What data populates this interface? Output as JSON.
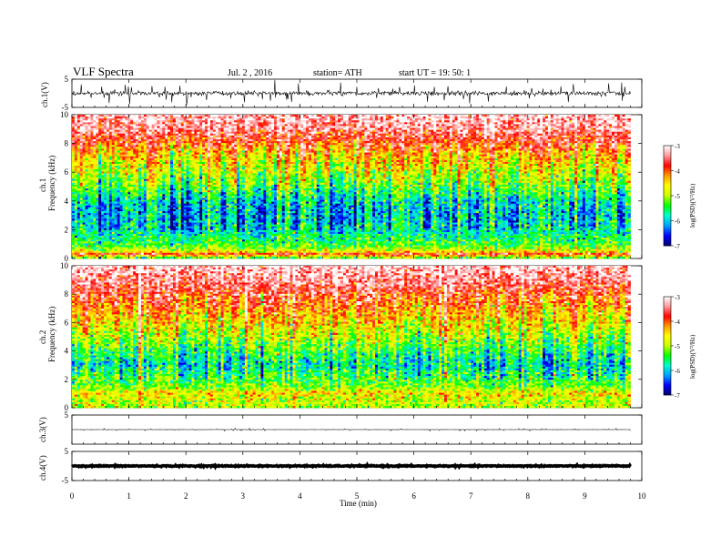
{
  "header": {
    "title": "VLF  Spectra",
    "date": "Jul.  2  , 2016",
    "station": "station= ATH",
    "start": "start  UT  =    19: 50: 1"
  },
  "chart_data": {
    "type": "heatmap",
    "x_axis": {
      "label": "Time  (min)",
      "range": [
        0,
        10
      ],
      "data_extent_min": 9.8,
      "ticks": [
        0,
        1,
        2,
        3,
        4,
        5,
        6,
        7,
        8,
        9,
        10
      ]
    },
    "panels": [
      {
        "name": "ch1-waveform",
        "type": "line",
        "ylabel": "ch.1(V)",
        "ylim": [
          -5,
          5
        ],
        "yticks": [
          5,
          -5
        ],
        "baseline": 0,
        "noise_amplitude": 1.0,
        "spike_amplitude": 2.5
      },
      {
        "name": "ch1-spectrogram",
        "type": "heatmap",
        "ylabel_channel": "ch.1",
        "ylabel": "Frequency  (kHz)",
        "ylim": [
          0,
          10
        ],
        "yticks": [
          0,
          2,
          4,
          6,
          8,
          10
        ],
        "zlabel": "log(PSD)(V²/Hz)",
        "zlim": [
          -7,
          -3
        ],
        "zticks": [
          -3,
          -4,
          -5,
          -6,
          -7
        ],
        "level_profile_khz": [
          [
            0.0,
            -5.6
          ],
          [
            0.3,
            -3.6
          ],
          [
            0.5,
            -4.8
          ],
          [
            1.0,
            -5.4
          ],
          [
            1.5,
            -5.6
          ],
          [
            2.0,
            -5.9
          ],
          [
            3.0,
            -6.1
          ],
          [
            4.0,
            -5.9
          ],
          [
            5.0,
            -5.3
          ],
          [
            6.0,
            -4.9
          ],
          [
            7.0,
            -4.5
          ],
          [
            8.0,
            -3.9
          ],
          [
            9.0,
            -3.4
          ],
          [
            10.0,
            -3.2
          ]
        ]
      },
      {
        "name": "ch2-spectrogram",
        "type": "heatmap",
        "ylabel_channel": "ch.2",
        "ylabel": "Frequency  (kHz)",
        "ylim": [
          0,
          10
        ],
        "yticks": [
          0,
          2,
          4,
          6,
          8,
          10
        ],
        "zlabel": "log(PSD)(V²/Hz)",
        "zlim": [
          -7,
          -3
        ],
        "zticks": [
          -3,
          -4,
          -5,
          -6,
          -7
        ],
        "level_profile_khz": [
          [
            0.0,
            -5.0
          ],
          [
            0.5,
            -4.9
          ],
          [
            1.0,
            -4.6
          ],
          [
            1.5,
            -5.2
          ],
          [
            2.0,
            -5.4
          ],
          [
            3.0,
            -5.9
          ],
          [
            4.0,
            -5.5
          ],
          [
            5.0,
            -5.0
          ],
          [
            6.0,
            -4.6
          ],
          [
            7.0,
            -4.2
          ],
          [
            8.0,
            -3.8
          ],
          [
            9.0,
            -3.4
          ],
          [
            10.0,
            -3.2
          ]
        ]
      },
      {
        "name": "ch3-waveform",
        "type": "line",
        "ylabel": "ch.3(V)",
        "ylim": [
          -5,
          5
        ],
        "yticks": [
          5
        ],
        "baseline": 0,
        "noise_amplitude": 0.05,
        "spike_amplitude": 0.3
      },
      {
        "name": "ch4-waveform",
        "type": "line",
        "ylabel": "ch.4(V)",
        "ylim": [
          -5,
          5
        ],
        "yticks": [
          5,
          -5
        ],
        "baseline": 0,
        "noise_amplitude": 0.25,
        "spike_amplitude": 0
      }
    ],
    "colorscale": [
      "#000070",
      "#0000ff",
      "#00a0ff",
      "#00ffd0",
      "#00ff00",
      "#c8ff00",
      "#ffff00",
      "#ff9a00",
      "#ff0000",
      "#ff9a9a",
      "#ffffff"
    ]
  }
}
